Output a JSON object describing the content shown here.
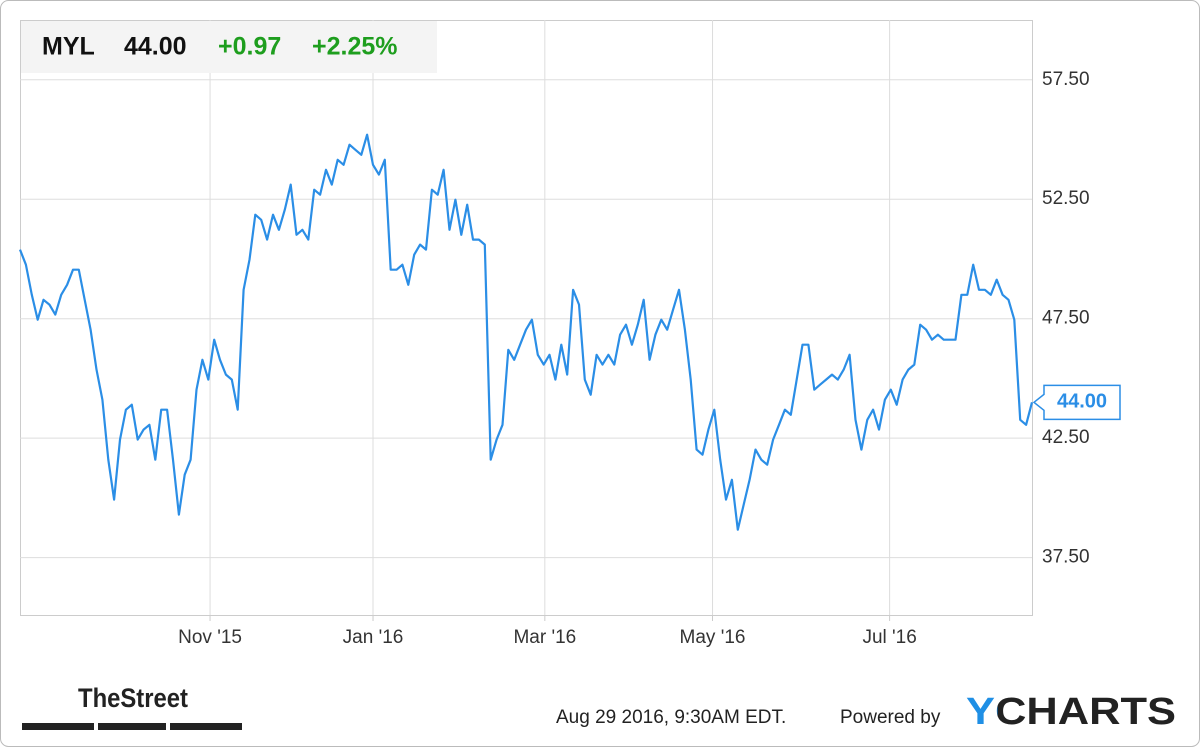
{
  "chart_data": {
    "type": "line",
    "ticker": "MYL",
    "price": "44.00",
    "change": "+0.97",
    "change_pct": "+2.25%",
    "color": "#2b8ee6",
    "grid": true,
    "values": [
      50.39,
      49.76,
      48.5,
      47.46,
      48.29,
      48.09,
      47.67,
      48.5,
      48.92,
      49.55,
      49.55,
      48.29,
      47.04,
      45.37,
      44.11,
      41.6,
      39.93,
      42.44,
      43.69,
      43.9,
      42.44,
      42.86,
      43.06,
      41.6,
      43.69,
      43.69,
      41.6,
      39.3,
      40.97,
      41.6,
      44.53,
      45.78,
      44.95,
      46.62,
      45.78,
      45.16,
      44.95,
      43.69,
      48.71,
      49.97,
      51.85,
      51.64,
      50.81,
      51.85,
      51.22,
      52.06,
      53.11,
      51.01,
      51.22,
      50.81,
      52.9,
      52.69,
      53.73,
      53.11,
      54.15,
      53.94,
      54.78,
      54.57,
      54.36,
      55.2,
      53.94,
      53.53,
      54.15,
      49.55,
      49.55,
      49.76,
      48.92,
      50.18,
      50.6,
      50.39,
      52.9,
      52.69,
      53.73,
      51.22,
      52.48,
      51.01,
      52.27,
      50.81,
      50.81,
      50.6,
      41.6,
      42.44,
      43.06,
      46.2,
      45.78,
      46.41,
      47.04,
      47.46,
      45.99,
      45.58,
      45.99,
      44.95,
      46.41,
      45.16,
      48.71,
      48.09,
      44.95,
      44.32,
      45.99,
      45.58,
      45.99,
      45.58,
      46.83,
      47.25,
      46.41,
      47.25,
      48.29,
      45.78,
      46.83,
      47.46,
      47.04,
      47.88,
      48.71,
      47.04,
      44.95,
      42.02,
      41.81,
      42.86,
      43.69,
      41.6,
      39.93,
      40.76,
      38.67,
      39.72,
      40.76,
      42.02,
      41.6,
      41.39,
      42.44,
      43.06,
      43.69,
      43.48,
      44.95,
      46.41,
      46.41,
      44.53,
      44.74,
      44.95,
      45.16,
      44.95,
      45.37,
      45.99,
      43.27,
      42.02,
      43.27,
      43.69,
      42.86,
      44.11,
      44.53,
      43.9,
      44.95,
      45.37,
      45.58,
      47.25,
      47.04,
      46.62,
      46.83,
      46.62,
      46.62,
      46.62,
      48.5,
      48.5,
      49.76,
      48.71,
      48.71,
      48.5,
      49.13,
      48.5,
      48.29,
      47.46,
      43.27,
      43.06,
      44.0
    ],
    "xlim": [
      0,
      172
    ],
    "xticks": [
      {
        "value": 32.3,
        "label": "Nov '15"
      },
      {
        "value": 60,
        "label": "Jan '16"
      },
      {
        "value": 89.2,
        "label": "Mar '16"
      },
      {
        "value": 117.7,
        "label": "May '16"
      },
      {
        "value": 147.8,
        "label": "Jul '16"
      }
    ],
    "ylim": [
      35.1,
      60.0
    ],
    "yticks": [
      {
        "value": 37.5,
        "label": "37.50"
      },
      {
        "value": 42.5,
        "label": "42.50"
      },
      {
        "value": 47.5,
        "label": "47.50"
      },
      {
        "value": 52.5,
        "label": "52.50"
      },
      {
        "value": 57.5,
        "label": "57.50"
      }
    ],
    "timestamp": "Aug 29 2016, 9:30AM EDT.",
    "powered_by": "Powered by",
    "brand": "YCHARTS",
    "source_logo": "TheStreet"
  }
}
